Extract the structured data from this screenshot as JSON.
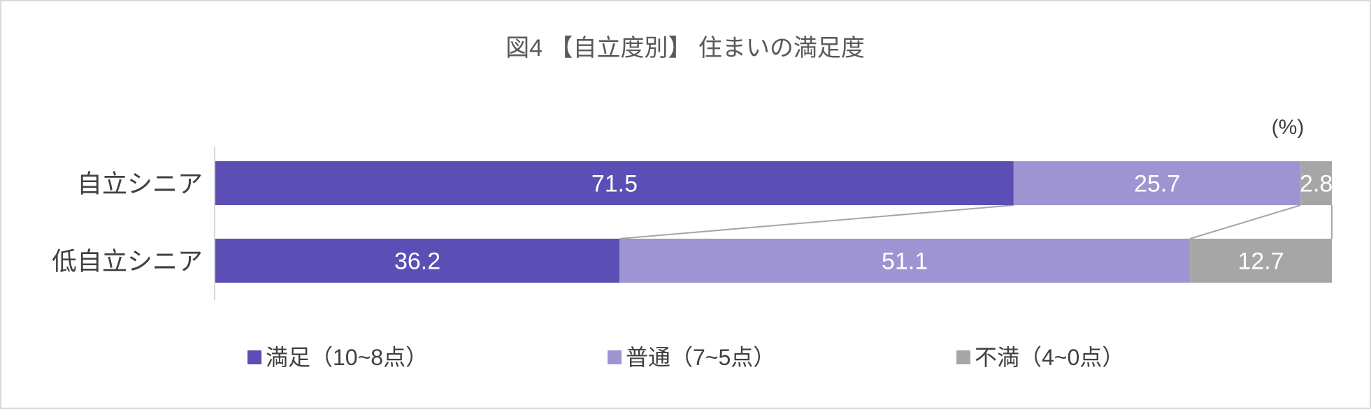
{
  "chart_data": {
    "type": "bar",
    "orientation": "horizontal",
    "stacked": true,
    "normalized": true,
    "title": "図4 【自立度別】 住まいの満足度",
    "unit_label": "(%)",
    "categories": [
      "自立シニア",
      "低自立シニア"
    ],
    "series": [
      {
        "name": "満足（10~8点）",
        "color": "#5b4eb5",
        "values": [
          71.5,
          36.2
        ]
      },
      {
        "name": "普通（7~5点）",
        "color": "#9e94d2",
        "values": [
          25.7,
          51.1
        ]
      },
      {
        "name": "不満（4~0点）",
        "color": "#a6a6a6",
        "values": [
          2.8,
          12.7
        ]
      }
    ],
    "xlim": [
      0,
      100
    ],
    "grid": false,
    "series_lines": true,
    "legend_position": "bottom",
    "label_color": "#ffffff"
  }
}
